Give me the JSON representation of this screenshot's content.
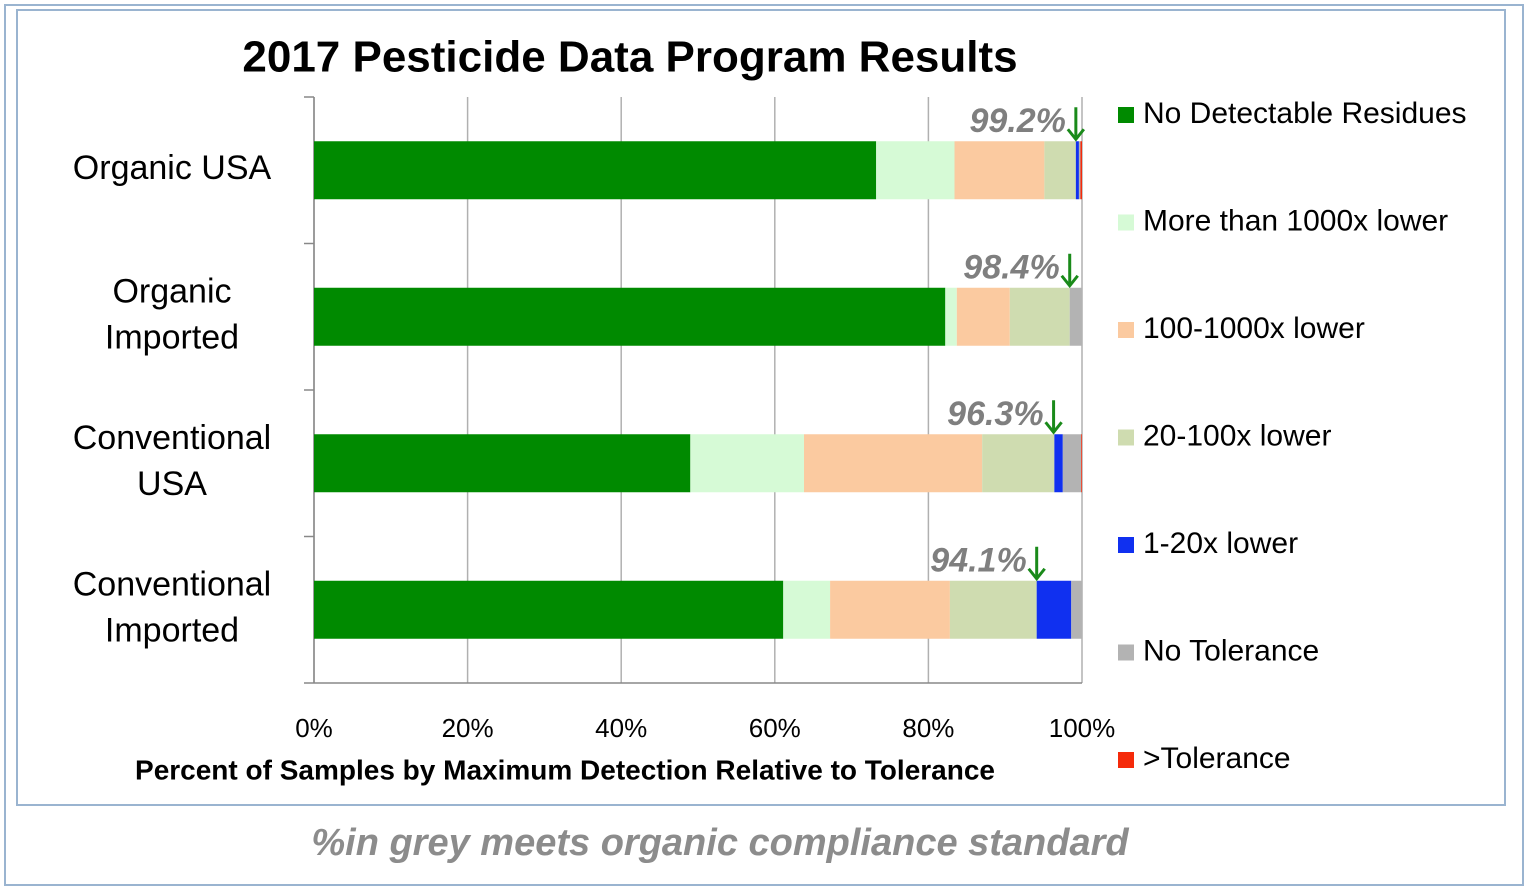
{
  "chart_data": {
    "type": "stacked-bar-horizontal",
    "title": "2017 Pesticide Data Program Results",
    "x_label": "Percent of Samples by Maximum Detection Relative to Tolerance",
    "footnote": "%in grey meets organic compliance standard",
    "categories": [
      [
        "Organic USA"
      ],
      [
        "Organic",
        "Imported"
      ],
      [
        "Conventional",
        "USA"
      ],
      [
        "Conventional",
        "Imported"
      ]
    ],
    "series": [
      {
        "name": "No Detectable Residues",
        "color": "#008a00",
        "values": [
          73.2,
          82.2,
          49.0,
          61.1
        ]
      },
      {
        "name": "More than 1000x lower",
        "color": "#d6fad6",
        "values": [
          10.2,
          1.5,
          14.8,
          6.1
        ]
      },
      {
        "name": "100-1000x lower",
        "color": "#fbcaa0",
        "values": [
          11.7,
          6.9,
          23.2,
          15.6
        ]
      },
      {
        "name": "20-100x lower",
        "color": "#cfdcb0",
        "values": [
          4.1,
          7.8,
          9.4,
          11.3
        ]
      },
      {
        "name": "1-20x lower",
        "color": "#1030f0",
        "values": [
          0.4,
          0,
          1.1,
          4.5
        ]
      },
      {
        "name": "No Tolerance",
        "color": "#b3b3b3",
        "values": [
          0.2,
          1.6,
          2.4,
          1.4
        ]
      },
      {
        "name": ">Tolerance",
        "color": "#f52a0a",
        "values": [
          0.2,
          0,
          0.1,
          0
        ]
      }
    ],
    "annotations": [
      {
        "value": 99.2,
        "label": "99.2%"
      },
      {
        "value": 98.4,
        "label": "98.4%"
      },
      {
        "value": 96.3,
        "label": "96.3%"
      },
      {
        "value": 94.1,
        "label": "94.1%"
      }
    ],
    "xlim": [
      0,
      100
    ],
    "xticks": [
      {
        "value": 0,
        "label": "0%"
      },
      {
        "value": 20,
        "label": "20%"
      },
      {
        "value": 40,
        "label": "40%"
      },
      {
        "value": 60,
        "label": "60%"
      },
      {
        "value": 80,
        "label": "80%"
      },
      {
        "value": 100,
        "label": "100%"
      }
    ],
    "grid": true,
    "legend": "right"
  }
}
